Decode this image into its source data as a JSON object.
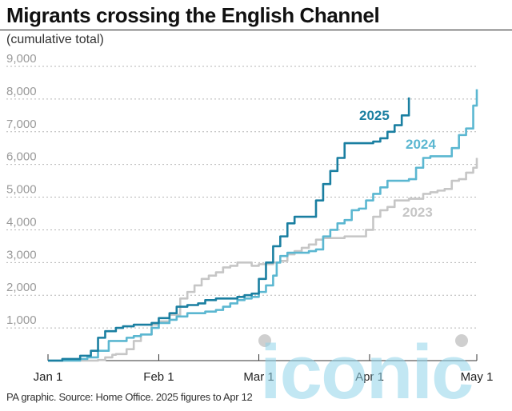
{
  "header": {
    "title": "Migrants crossing the English Channel",
    "subtitle": "(cumulative total)"
  },
  "footer": {
    "source": "PA graphic. Source: Home Office. 2025 figures to Apr 12"
  },
  "watermark": {
    "text": "iconic",
    "color": "#8fd3ea"
  },
  "chart_data": {
    "type": "line",
    "title": "Migrants crossing the English Channel",
    "subtitle": "(cumulative total)",
    "xlabel": "",
    "ylabel": "",
    "x_axis": "day of year (Jan 1 to May 1)",
    "xlim": [
      "Jan 1",
      "May 1"
    ],
    "xticks": [
      {
        "label": "Jan 1",
        "day": 1
      },
      {
        "label": "Feb 1",
        "day": 32
      },
      {
        "label": "Mar 1",
        "day": 60
      },
      {
        "label": "Apr 1",
        "day": 91
      },
      {
        "label": "May 1",
        "day": 121
      }
    ],
    "ylim": [
      0,
      9000
    ],
    "yticks": [
      "1,000",
      "2,000",
      "3,000",
      "4,000",
      "5,000",
      "6,000",
      "7,000",
      "8,000",
      "9,000"
    ],
    "ytick_values": [
      1000,
      2000,
      3000,
      4000,
      5000,
      6000,
      7000,
      8000,
      9000
    ],
    "grid": "horizontal dotted",
    "legend": "direct labels at line ends",
    "series": [
      {
        "name": "2023",
        "color": "#c6c6c6",
        "x": [
          1,
          5,
          10,
          15,
          17,
          19,
          20,
          23,
          25,
          27,
          30,
          32,
          35,
          38,
          40,
          42,
          44,
          46,
          48,
          50,
          52,
          54,
          56,
          58,
          60,
          62,
          64,
          66,
          68,
          70,
          72,
          74,
          76,
          78,
          80,
          82,
          84,
          86,
          88,
          90,
          92,
          94,
          96,
          98,
          100,
          102,
          104,
          106,
          108,
          110,
          112,
          114,
          116,
          118,
          120,
          121
        ],
        "y": [
          0,
          0,
          0,
          20,
          100,
          180,
          200,
          350,
          600,
          800,
          1100,
          1200,
          1400,
          1900,
          2100,
          2300,
          2500,
          2600,
          2700,
          2850,
          2900,
          3000,
          3000,
          2900,
          2950,
          2950,
          3000,
          3050,
          3250,
          3350,
          3450,
          3550,
          3700,
          3750,
          3750,
          3750,
          3800,
          3800,
          3800,
          4000,
          4400,
          4600,
          4700,
          4900,
          4900,
          4950,
          4950,
          5100,
          5150,
          5200,
          5250,
          5500,
          5550,
          5750,
          5900,
          6200
        ]
      },
      {
        "name": "2024",
        "color": "#5bb7d1",
        "x": [
          1,
          5,
          10,
          12,
          15,
          18,
          20,
          23,
          25,
          27,
          30,
          32,
          35,
          37,
          40,
          43,
          45,
          48,
          50,
          52,
          54,
          56,
          58,
          60,
          62,
          64,
          65,
          66,
          68,
          70,
          72,
          74,
          76,
          78,
          80,
          82,
          84,
          86,
          88,
          90,
          92,
          94,
          96,
          98,
          100,
          102,
          104,
          106,
          108,
          110,
          112,
          114,
          116,
          118,
          120,
          121
        ],
        "y": [
          0,
          0,
          50,
          100,
          300,
          600,
          600,
          700,
          750,
          800,
          1000,
          1150,
          1250,
          1350,
          1450,
          1450,
          1500,
          1550,
          1650,
          1750,
          1850,
          1900,
          1950,
          2100,
          2300,
          2600,
          3000,
          3200,
          3300,
          3300,
          3300,
          3350,
          3400,
          3800,
          4000,
          4200,
          4300,
          4600,
          4650,
          4900,
          5100,
          5300,
          5500,
          5500,
          5500,
          5550,
          5900,
          6200,
          6250,
          6250,
          6250,
          6500,
          6900,
          7100,
          7800,
          8300
        ]
      },
      {
        "name": "2025",
        "color": "#1a7fa1",
        "x": [
          1,
          5,
          8,
          10,
          13,
          15,
          17,
          20,
          22,
          25,
          28,
          30,
          32,
          35,
          37,
          40,
          43,
          45,
          48,
          50,
          52,
          54,
          56,
          58,
          60,
          62,
          64,
          66,
          68,
          70,
          72,
          74,
          76,
          78,
          80,
          82,
          84,
          86,
          88,
          90,
          92,
          94,
          96,
          98,
          100,
          102
        ],
        "y": [
          0,
          50,
          50,
          150,
          300,
          700,
          900,
          1000,
          1050,
          1100,
          1100,
          1150,
          1300,
          1450,
          1650,
          1700,
          1750,
          1850,
          1900,
          1900,
          1900,
          1950,
          2000,
          2050,
          2500,
          3000,
          3500,
          3800,
          4200,
          4400,
          4400,
          4400,
          4900,
          5400,
          5800,
          6200,
          6650,
          6650,
          6650,
          6650,
          6700,
          6800,
          7000,
          7200,
          7500,
          8050
        ]
      }
    ],
    "labels": [
      {
        "text": "2025",
        "series": "2025",
        "color": "#1a7fa1"
      },
      {
        "text": "2024",
        "series": "2024",
        "color": "#5bb7d1"
      },
      {
        "text": "2023",
        "series": "2023",
        "color": "#c6c6c6"
      }
    ]
  }
}
